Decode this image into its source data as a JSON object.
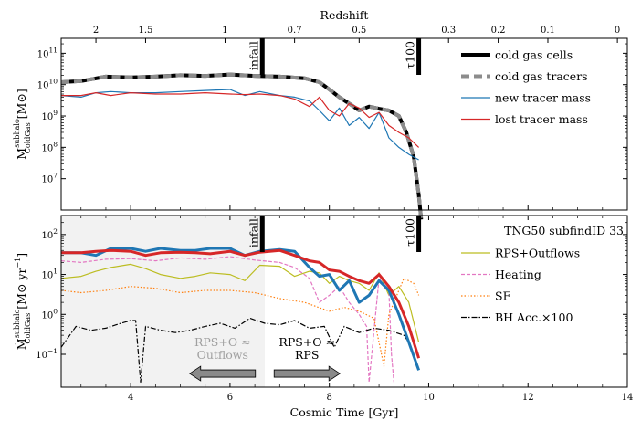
{
  "chart_data": [
    {
      "type": "line",
      "panel": "top",
      "ylabel": "M^{subhalo}_{ColdGas} [M⊙]",
      "ylabel_parts": {
        "base": "M",
        "sup": "subhalo",
        "sub": "ColdGas",
        "unit": "[M⊙]"
      },
      "yscale": "log",
      "ylim": [
        1000000,
        300000000000
      ],
      "xlim": [
        2.6,
        14
      ],
      "yticks": [
        {
          "value": 10000000,
          "mant": "10",
          "exp": "7"
        },
        {
          "value": 100000000,
          "mant": "10",
          "exp": "8"
        },
        {
          "value": 1000000000,
          "mant": "10",
          "exp": "9"
        },
        {
          "value": 10000000000,
          "mant": "10",
          "exp": "10"
        },
        {
          "value": 100000000000,
          "mant": "10",
          "exp": "11"
        }
      ],
      "top_axis": {
        "label": "Redshift",
        "ticks": [
          {
            "label": "2",
            "t": 3.3
          },
          {
            "label": "1.5",
            "t": 4.3
          },
          {
            "label": "1",
            "t": 5.9
          },
          {
            "label": "0.7",
            "t": 7.3
          },
          {
            "label": "0.5",
            "t": 8.6
          },
          {
            "label": "0.3",
            "t": 10.4
          },
          {
            "label": "0.2",
            "t": 11.4
          },
          {
            "label": "0.1",
            "t": 12.4
          },
          {
            "label": "0",
            "t": 13.8
          }
        ]
      },
      "markers": [
        {
          "label": "infall",
          "x": 6.65
        },
        {
          "label": "τ100",
          "x": 9.8
        }
      ],
      "series": [
        {
          "name": "cold gas cells",
          "color": "#000000",
          "width": 4,
          "dash": "",
          "x": [
            2.6,
            3.0,
            3.5,
            4.0,
            4.5,
            5.0,
            5.5,
            6.0,
            6.5,
            7.0,
            7.5,
            7.8,
            8.0,
            8.2,
            8.4,
            8.6,
            8.8,
            9.0,
            9.2,
            9.4,
            9.55,
            9.7,
            9.8,
            9.85
          ],
          "y": [
            12000000000,
            13000000000,
            18000000000,
            17000000000,
            18000000000,
            20000000000,
            19000000000,
            21000000000,
            19000000000,
            18000000000,
            16000000000,
            12000000000,
            7000000000,
            4000000000,
            2500000000,
            1500000000,
            2000000000,
            1700000000,
            1500000000,
            1000000000,
            300000000,
            50000000,
            3000000,
            300000
          ]
        },
        {
          "name": "cold gas tracers",
          "color": "#8c8c8c",
          "width": 4,
          "dash": "9,5",
          "x": [
            2.6,
            3.0,
            3.5,
            4.0,
            4.5,
            5.0,
            5.5,
            6.0,
            6.5,
            7.0,
            7.5,
            7.8,
            8.0,
            8.2,
            8.4,
            8.6,
            8.8,
            9.0,
            9.2,
            9.4,
            9.55,
            9.7,
            9.8,
            9.85
          ],
          "y": [
            12000000000,
            13000000000,
            18000000000,
            17000000000,
            18000000000,
            20000000000,
            19000000000,
            21000000000,
            19000000000,
            18000000000,
            16000000000,
            12000000000,
            7000000000,
            4000000000,
            2500000000,
            1500000000,
            2000000000,
            1700000000,
            1500000000,
            1000000000,
            300000000,
            50000000,
            3000000,
            300000
          ]
        },
        {
          "name": "new tracer mass",
          "color": "#1f77b4",
          "width": 1.2,
          "dash": "",
          "x": [
            2.6,
            3.0,
            3.3,
            3.6,
            4.0,
            4.5,
            5.0,
            5.5,
            6.0,
            6.3,
            6.6,
            7.0,
            7.3,
            7.6,
            7.8,
            8.0,
            8.2,
            8.4,
            8.6,
            8.8,
            9.0,
            9.2,
            9.4,
            9.6,
            9.8
          ],
          "y": [
            4500000000,
            4000000000,
            5500000000,
            6000000000,
            5500000000,
            5500000000,
            6000000000,
            6500000000,
            7000000000,
            4500000000,
            6000000000,
            4500000000,
            4000000000,
            3000000000,
            1500000000,
            700000000,
            1800000000,
            500000000,
            900000000,
            400000000,
            1300000000,
            200000000,
            100000000,
            60000000,
            40000000
          ]
        },
        {
          "name": "lost tracer mass",
          "color": "#d62728",
          "width": 1.2,
          "dash": "",
          "x": [
            2.6,
            3.0,
            3.3,
            3.6,
            4.0,
            4.5,
            5.0,
            5.5,
            6.0,
            6.3,
            6.6,
            7.0,
            7.3,
            7.6,
            7.8,
            8.0,
            8.2,
            8.4,
            8.6,
            8.8,
            9.0,
            9.2,
            9.4,
            9.6,
            9.8
          ],
          "y": [
            4500000000,
            4500000000,
            5500000000,
            4500000000,
            5500000000,
            5000000000,
            5000000000,
            5500000000,
            5000000000,
            4800000000,
            5000000000,
            4500000000,
            3500000000,
            2000000000,
            4000000000,
            1500000000,
            1000000000,
            2500000000,
            1800000000,
            900000000,
            1300000000,
            500000000,
            300000000,
            200000000,
            100000000
          ]
        }
      ]
    },
    {
      "type": "line",
      "panel": "bottom",
      "ylabel": "Ṁ^{subhalo}_{ColdGas} [M⊙ yr^-1]",
      "ylabel_parts": {
        "base": "Ṁ",
        "sup": "subhalo",
        "sub": "ColdGas",
        "unit": "[M⊙ yr",
        "unit_exp": "−1",
        "unit_end": "]"
      },
      "xlabel": "Cosmic Time [Gyr]",
      "yscale": "log",
      "ylim": [
        0.015,
        300
      ],
      "xlim": [
        2.6,
        14
      ],
      "xticks": [
        {
          "value": 4,
          "label": "4"
        },
        {
          "value": 6,
          "label": "6"
        },
        {
          "value": 8,
          "label": "8"
        },
        {
          "value": 10,
          "label": "10"
        },
        {
          "value": 12,
          "label": "12"
        },
        {
          "value": 14,
          "label": "14"
        }
      ],
      "yticks": [
        {
          "value": 0.1,
          "mant": "10",
          "exp": "−1"
        },
        {
          "value": 1,
          "mant": "10",
          "exp": "0"
        },
        {
          "value": 10,
          "mant": "10",
          "exp": "1"
        },
        {
          "value": 100,
          "mant": "10",
          "exp": "2"
        }
      ],
      "shaded_region": {
        "x0": 2.6,
        "x1": 6.7
      },
      "markers": [
        {
          "label": "infall",
          "x": 6.65
        },
        {
          "label": "τ100",
          "x": 9.8
        }
      ],
      "legend_title": "TNG50 subfindID 33",
      "annotations": [
        {
          "text": [
            "RPS+O ≈",
            "Outflows"
          ],
          "x": 5.85,
          "y": 0.16,
          "color": "#a0a0a0",
          "arrow": "left"
        },
        {
          "text": [
            "RPS+O ≈",
            "RPS"
          ],
          "x": 7.55,
          "y": 0.16,
          "color": "#000000",
          "arrow": "right"
        }
      ],
      "series": [
        {
          "name": "RPS+Outflows",
          "color": "#bcbd22",
          "width": 1.2,
          "dash": "",
          "legend": true,
          "x": [
            2.6,
            3.0,
            3.3,
            3.6,
            4.0,
            4.3,
            4.6,
            5.0,
            5.3,
            5.6,
            6.0,
            6.3,
            6.6,
            7.0,
            7.3,
            7.6,
            7.8,
            8.0,
            8.2,
            8.4,
            8.6,
            8.8,
            9.0,
            9.2,
            9.4,
            9.6,
            9.8
          ],
          "y": [
            8,
            9,
            12,
            15,
            18,
            14,
            10,
            8,
            9,
            11,
            10,
            7,
            17,
            16,
            9,
            12,
            11,
            6,
            9,
            7,
            6,
            4,
            11,
            3,
            5,
            2,
            0.2
          ]
        },
        {
          "name": "Heating",
          "color": "#e377c2",
          "width": 1.2,
          "dash": "4,2",
          "legend": true,
          "x": [
            2.6,
            3.0,
            3.5,
            4.0,
            4.5,
            5.0,
            5.5,
            6.0,
            6.5,
            7.0,
            7.3,
            7.6,
            7.8,
            8.0,
            8.2,
            8.4,
            8.6,
            8.75,
            8.8,
            9.0,
            9.2,
            9.25,
            9.3
          ],
          "y": [
            22,
            20,
            24,
            25,
            22,
            26,
            24,
            28,
            23,
            20,
            15,
            8,
            2,
            3,
            5,
            2,
            1,
            0.5,
            0.02,
            8,
            4,
            0.1,
            0.02
          ]
        },
        {
          "name": "SF",
          "color": "#ff7f0e",
          "width": 1.2,
          "dash": "1.5,2",
          "legend": true,
          "x": [
            2.6,
            3.0,
            3.5,
            4.0,
            4.5,
            5.0,
            5.5,
            6.0,
            6.5,
            7.0,
            7.5,
            8.0,
            8.3,
            8.6,
            8.9,
            9.1,
            9.2,
            9.3,
            9.5,
            9.7,
            9.8
          ],
          "y": [
            4,
            3.5,
            4,
            5,
            4.5,
            3.5,
            4,
            4,
            3.5,
            2.5,
            2,
            1.2,
            1.5,
            1.2,
            0.8,
            0.05,
            1,
            2,
            8,
            6,
            3
          ]
        },
        {
          "name": "BH Acc.×100",
          "color": "#000000",
          "width": 1.2,
          "dash": "6,2,1.5,2",
          "legend": true,
          "x": [
            2.6,
            2.9,
            3.2,
            3.5,
            3.8,
            4.0,
            4.1,
            4.2,
            4.3,
            4.6,
            4.9,
            5.2,
            5.5,
            5.8,
            6.1,
            6.4,
            6.7,
            7.0,
            7.3,
            7.6,
            7.9,
            8.1,
            8.3,
            8.6,
            8.9,
            9.2,
            9.5,
            9.6
          ],
          "y": [
            0.15,
            0.5,
            0.4,
            0.45,
            0.6,
            0.7,
            0.7,
            0.02,
            0.5,
            0.4,
            0.35,
            0.4,
            0.5,
            0.6,
            0.45,
            0.8,
            0.6,
            0.55,
            0.7,
            0.45,
            0.5,
            0.15,
            0.5,
            0.35,
            0.45,
            0.4,
            0.3,
            0.2
          ]
        },
        {
          "name": "",
          "color": "#1f77b4",
          "width": 3,
          "dash": "",
          "legend": false,
          "x": [
            2.6,
            3.0,
            3.3,
            3.6,
            4.0,
            4.3,
            4.6,
            5.0,
            5.3,
            5.6,
            6.0,
            6.3,
            6.6,
            7.0,
            7.3,
            7.6,
            7.8,
            8.0,
            8.2,
            8.4,
            8.6,
            8.8,
            9.0,
            9.2,
            9.4,
            9.6,
            9.8
          ],
          "y": [
            35,
            35,
            30,
            45,
            45,
            38,
            45,
            40,
            40,
            45,
            45,
            30,
            38,
            42,
            38,
            15,
            9,
            10,
            4,
            7,
            2,
            3,
            7,
            4,
            1,
            0.2,
            0.04
          ]
        },
        {
          "name": "",
          "color": "#d62728",
          "width": 3,
          "dash": "",
          "legend": false,
          "x": [
            2.6,
            3.0,
            3.3,
            3.6,
            4.0,
            4.3,
            4.6,
            5.0,
            5.3,
            5.6,
            6.0,
            6.3,
            6.6,
            7.0,
            7.3,
            7.6,
            7.8,
            8.0,
            8.2,
            8.4,
            8.6,
            8.8,
            9.0,
            9.2,
            9.4,
            9.6,
            9.8
          ],
          "y": [
            35,
            35,
            38,
            40,
            38,
            30,
            35,
            36,
            35,
            33,
            38,
            30,
            36,
            40,
            30,
            22,
            20,
            13,
            12,
            9,
            7,
            6,
            10,
            5,
            2,
            0.5,
            0.08
          ]
        }
      ]
    }
  ]
}
